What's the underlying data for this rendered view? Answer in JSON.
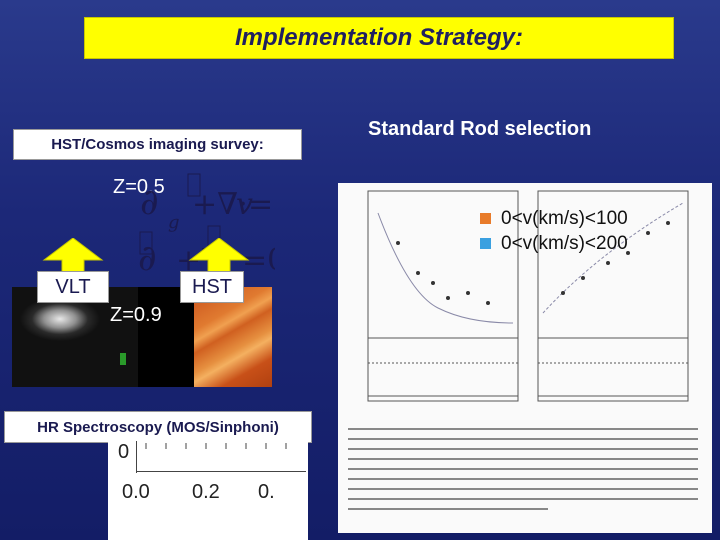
{
  "title": "Implementation Strategy:",
  "left": {
    "survey_label": "HST/Cosmos imaging survey:",
    "z_low": "Z=0.5",
    "z_high": "Z=0.9",
    "vlt": "VLT",
    "hst": "HST",
    "spectroscopy_label": "HR Spectroscopy (MOS/Sinphoni)",
    "axis_zero": "0",
    "axis_ticks": [
      "0.0",
      "0.2",
      "0."
    ]
  },
  "right": {
    "heading": "Standard Rod selection",
    "legend": [
      {
        "label": "0<v(km/s)<100",
        "color": "#e87b2a"
      },
      {
        "label": "0<v(km/s)<200",
        "color": "#3aa0e0"
      }
    ]
  },
  "colors": {
    "background": "#1c2878",
    "title_fill": "#ffff00",
    "arrow_fill": "#ffff00"
  }
}
